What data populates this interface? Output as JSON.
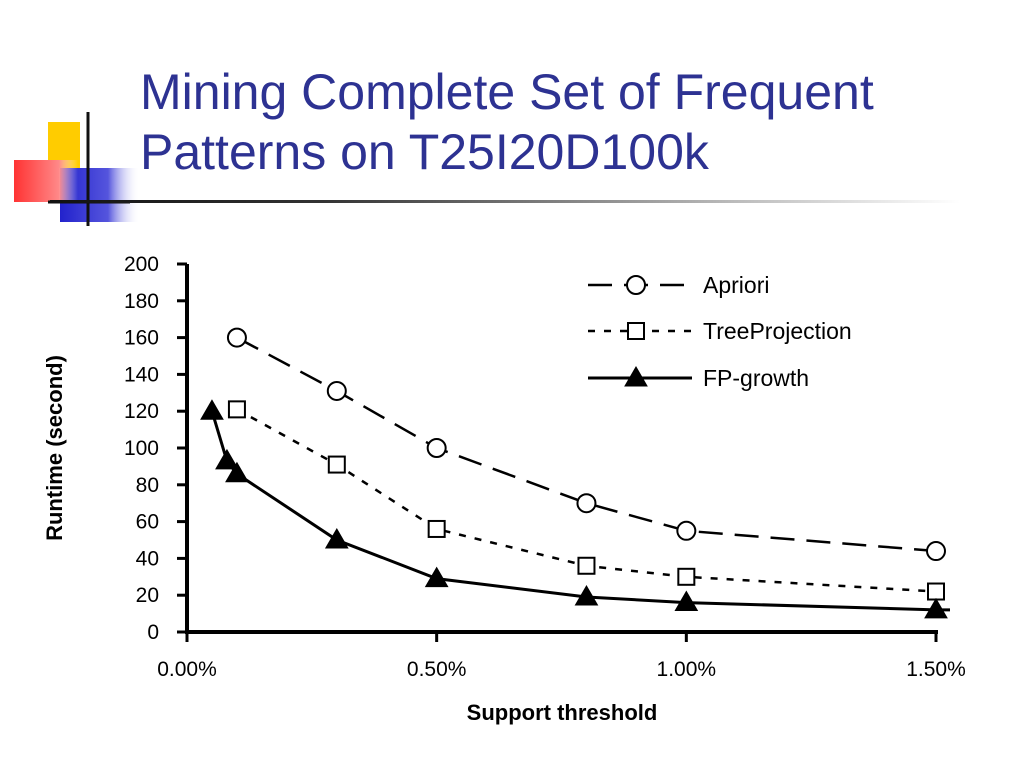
{
  "slide": {
    "title_line1": "Mining Complete Set of Frequent",
    "title_line2": "Patterns on T25I20D100k"
  },
  "colors": {
    "title": "#2d3292",
    "deco_yellow": "#ffcc00",
    "deco_red": "#ff3333",
    "deco_blue": "#2222cc"
  },
  "chart_data": {
    "type": "line",
    "title": "",
    "xlabel": "Support threshold",
    "ylabel": "Runtime (second)",
    "xlim": [
      0,
      1.5
    ],
    "ylim": [
      0,
      200
    ],
    "x_ticks": [
      {
        "value": 0,
        "label": "0.00%"
      },
      {
        "value": 0.5,
        "label": "0.50%"
      },
      {
        "value": 1.0,
        "label": "1.00%"
      },
      {
        "value": 1.5,
        "label": "1.50%"
      }
    ],
    "y_ticks": [
      0,
      20,
      40,
      60,
      80,
      100,
      120,
      140,
      160,
      180,
      200
    ],
    "legend_position": "top-right",
    "grid": false,
    "series": [
      {
        "name": "Apriori",
        "marker": "circle",
        "line": "long-dash",
        "x": [
          0.1,
          0.3,
          0.5,
          0.8,
          1.0,
          1.5
        ],
        "y": [
          160,
          131,
          100,
          70,
          55,
          44
        ]
      },
      {
        "name": "TreeProjection",
        "marker": "square",
        "line": "short-dash",
        "x": [
          0.1,
          0.3,
          0.5,
          0.8,
          1.0,
          1.5
        ],
        "y": [
          121,
          91,
          56,
          36,
          30,
          22
        ]
      },
      {
        "name": "FP-growth",
        "marker": "triangle",
        "line": "solid",
        "x": [
          0.05,
          0.08,
          0.1,
          0.3,
          0.5,
          0.8,
          1.0,
          1.5
        ],
        "y": [
          120,
          93,
          86,
          50,
          29,
          19,
          16,
          12
        ]
      }
    ]
  }
}
